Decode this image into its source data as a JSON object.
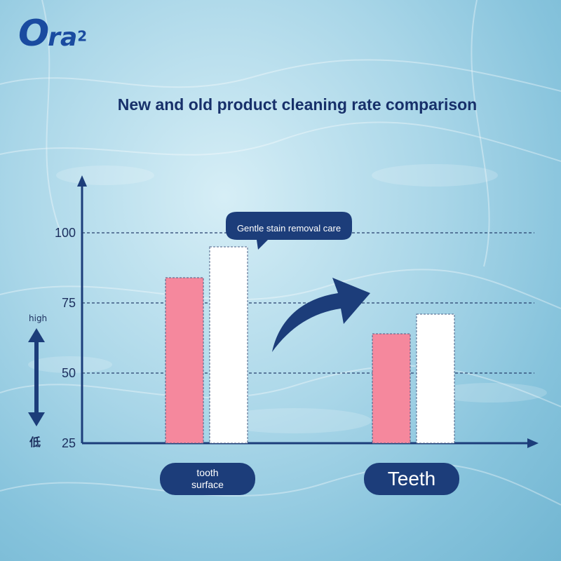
{
  "brand": {
    "logo_o": "O",
    "logo_ra": "ra",
    "logo_sup": "2"
  },
  "chart_data": {
    "type": "bar",
    "title": "New and old product cleaning rate comparison",
    "categories": [
      "tooth\nsurface",
      "Teeth"
    ],
    "series": [
      {
        "values": [
          84,
          64
        ],
        "color": "#f5889d"
      },
      {
        "values": [
          95,
          71
        ],
        "color": "#ffffff"
      }
    ],
    "yticks": [
      25,
      50,
      75,
      100
    ],
    "ylim": [
      25,
      100
    ],
    "grid": true,
    "annotation": "Gentle stain removal care",
    "side_label_top": "high",
    "side_label_bottom": "低"
  },
  "colors": {
    "axis": "#1c3d7a",
    "grid": "#27406e"
  }
}
